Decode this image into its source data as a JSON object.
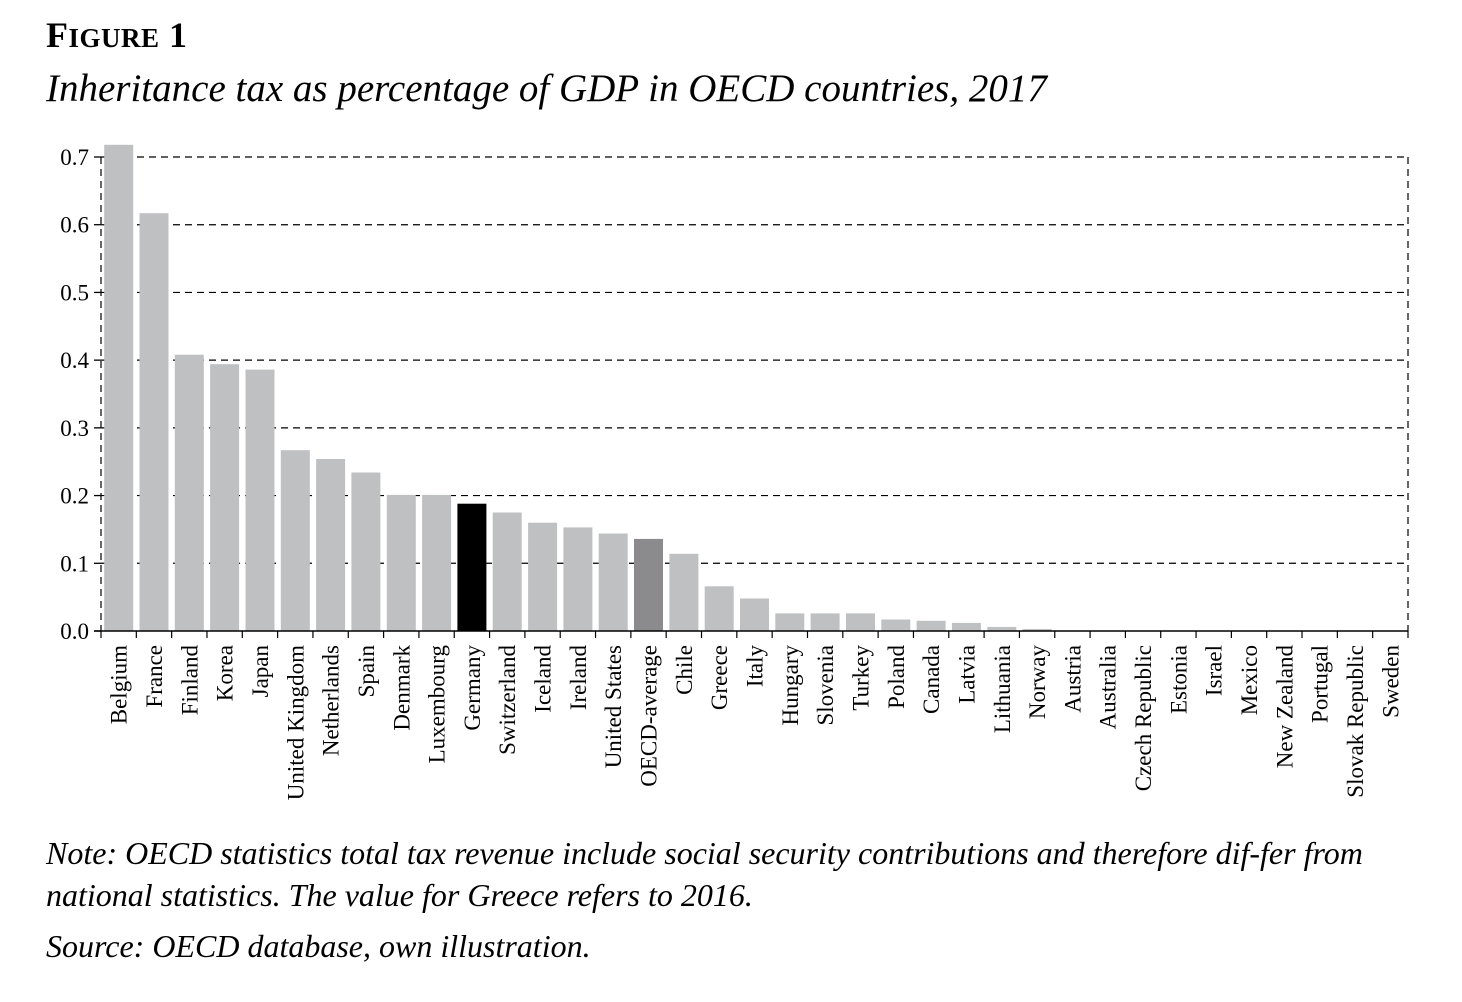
{
  "figure": {
    "label_first": "F",
    "label_rest": "IGURE",
    "label_number": "1",
    "title": "Inheritance tax as percentage of GDP in OECD countries, 2017"
  },
  "note": "Note: OECD statistics total tax revenue include social security contributions and therefore dif-fer from national statistics. The value for Greece refers to 2016.",
  "source": "Source: OECD database, own illustration.",
  "chart_data": {
    "type": "bar",
    "categories": [
      "Belgium",
      "France",
      "Finland",
      "Korea",
      "Japan",
      "United Kingdom",
      "Netherlands",
      "Spain",
      "Denmark",
      "Luxembourg",
      "Germany",
      "Switzerland",
      "Iceland",
      "Ireland",
      "United States",
      "OECD-average",
      "Chile",
      "Greece",
      "Italy",
      "Hungary",
      "Slovenia",
      "Turkey",
      "Poland",
      "Canada",
      "Latvia",
      "Lithuania",
      "Norway",
      "Austria",
      "Australia",
      "Czech Republic",
      "Estonia",
      "Israel",
      "Mexico",
      "New Zealand",
      "Portugal",
      "Slovak Republic",
      "Sweden"
    ],
    "values": [
      0.718,
      0.617,
      0.408,
      0.394,
      0.386,
      0.267,
      0.254,
      0.234,
      0.201,
      0.201,
      0.188,
      0.175,
      0.16,
      0.153,
      0.144,
      0.136,
      0.114,
      0.066,
      0.048,
      0.026,
      0.026,
      0.026,
      0.017,
      0.015,
      0.012,
      0.006,
      0.003,
      0,
      0,
      0,
      0,
      0,
      0,
      0,
      0,
      0,
      0
    ],
    "yticks": [
      "0.0",
      "0.1",
      "0.2",
      "0.3",
      "0.4",
      "0.5",
      "0.6",
      "0.7"
    ],
    "ylim": [
      0,
      0.7
    ],
    "grid": true,
    "colors": {
      "default": "#bfc0c2",
      "highlight": "#000000",
      "average": "#8b8b8d"
    },
    "highlight": [
      "Germany"
    ],
    "average": [
      "OECD-average"
    ]
  }
}
